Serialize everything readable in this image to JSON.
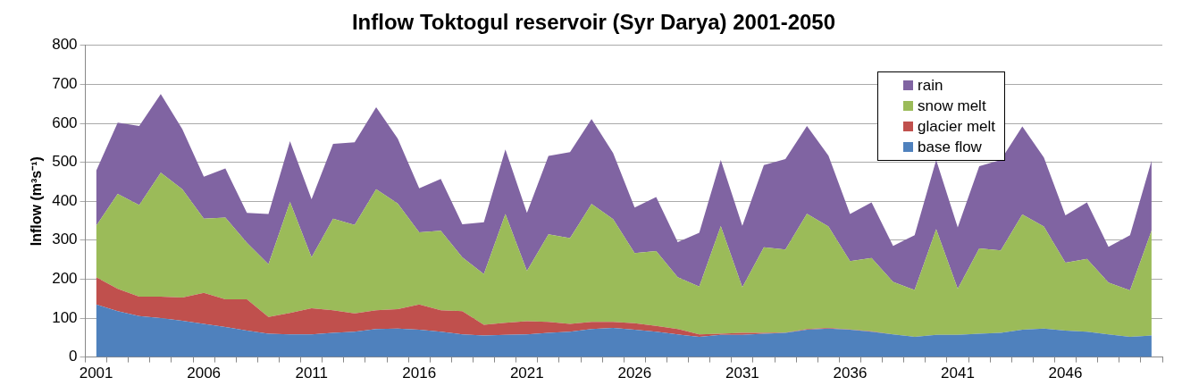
{
  "chart_data": {
    "type": "area",
    "title": "Inflow Toktogul reservoir (Syr Darya) 2001-2050",
    "ylabel": "Inflow (m³s⁻¹)",
    "categories": [
      "2001",
      null,
      null,
      null,
      null,
      "2006",
      null,
      null,
      null,
      null,
      "2011",
      null,
      null,
      null,
      null,
      "2016",
      null,
      null,
      null,
      null,
      "2021",
      null,
      null,
      null,
      null,
      "2026",
      null,
      null,
      null,
      null,
      "2031",
      null,
      null,
      null,
      null,
      "2036",
      null,
      null,
      null,
      null,
      "2041",
      null,
      null,
      null,
      null,
      "2046",
      null,
      null,
      null,
      null
    ],
    "stacked": true,
    "ylim": [
      0,
      800
    ],
    "yticks": [
      0,
      100,
      200,
      300,
      400,
      500,
      600,
      700,
      800
    ],
    "grid": "y",
    "legend": "top right",
    "series": [
      {
        "name": "base flow",
        "color": "#4f81bd",
        "values": [
          135,
          118,
          105,
          100,
          93,
          85,
          77,
          68,
          60,
          58,
          58,
          62,
          65,
          72,
          73,
          70,
          65,
          58,
          55,
          57,
          58,
          62,
          65,
          72,
          75,
          70,
          65,
          58,
          52,
          57,
          57,
          60,
          62,
          70,
          73,
          70,
          65,
          58,
          52,
          57,
          57,
          60,
          62,
          70,
          73,
          68,
          65,
          58,
          52,
          55
        ]
      },
      {
        "name": "glacier melt",
        "color": "#c0504d",
        "values": [
          70,
          57,
          50,
          55,
          60,
          80,
          71,
          80,
          43,
          55,
          67,
          58,
          47,
          48,
          50,
          65,
          55,
          60,
          28,
          31,
          34,
          28,
          20,
          18,
          15,
          17,
          15,
          14,
          6,
          3,
          5,
          2,
          1,
          2,
          2,
          1,
          1,
          0,
          0,
          0,
          0,
          0,
          0,
          0,
          0,
          0,
          0,
          0,
          0,
          0
        ]
      },
      {
        "name": "snow melt",
        "color": "#9bbb59",
        "values": [
          132,
          244,
          235,
          318,
          278,
          190,
          210,
          145,
          135,
          285,
          131,
          235,
          227,
          311,
          271,
          185,
          204,
          138,
          130,
          279,
          129,
          225,
          220,
          303,
          264,
          180,
          192,
          133,
          123,
          276,
          117,
          220,
          213,
          296,
          260,
          175,
          188,
          135,
          120,
          271,
          118,
          219,
          212,
          296,
          262,
          174,
          187,
          133,
          119,
          270
        ]
      },
      {
        "name": "rain",
        "color": "#8064a2",
        "values": [
          141,
          183,
          203,
          202,
          154,
          108,
          126,
          77,
          129,
          156,
          149,
          192,
          212,
          210,
          167,
          113,
          133,
          85,
          133,
          166,
          149,
          201,
          221,
          218,
          170,
          117,
          139,
          90,
          138,
          170,
          158,
          211,
          232,
          225,
          182,
          121,
          143,
          92,
          141,
          178,
          158,
          211,
          232,
          226,
          177,
          122,
          145,
          92,
          142,
          179
        ]
      }
    ]
  }
}
